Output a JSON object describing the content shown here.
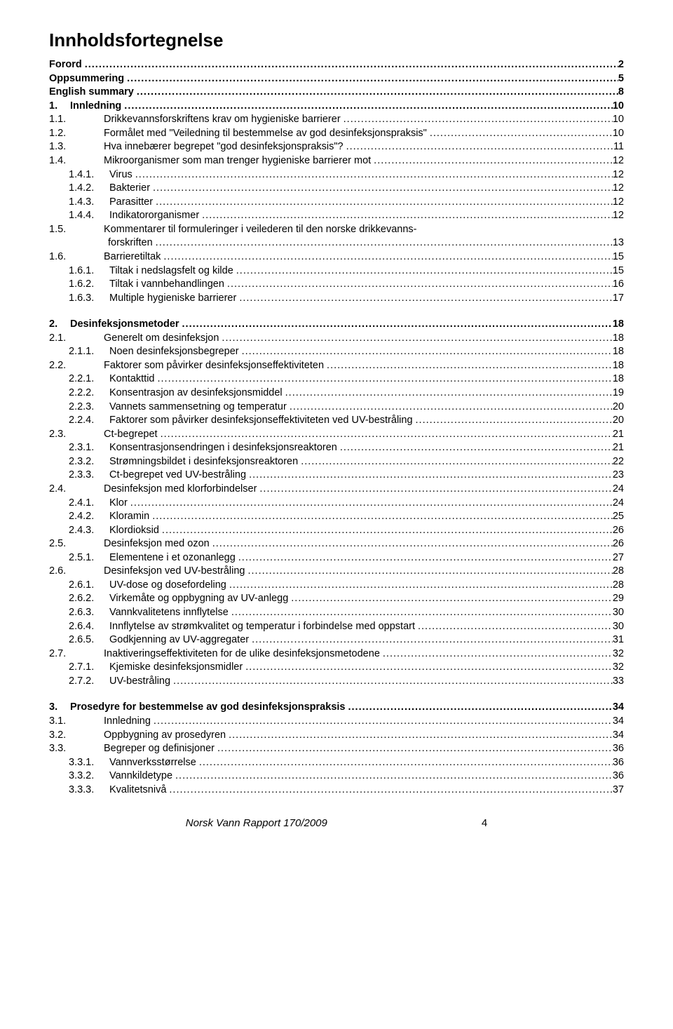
{
  "title": "Innholdsfortegnelse",
  "footer": {
    "text": "Norsk Vann Rapport 170/2009",
    "page": "4"
  },
  "sections": [
    {
      "entries": [
        {
          "level": 0,
          "num": "",
          "label": "Forord",
          "page": "2"
        },
        {
          "level": 0,
          "num": "",
          "label": "Oppsummering",
          "page": "5"
        },
        {
          "level": 0,
          "num": "",
          "label": "English summary",
          "page": "8"
        },
        {
          "level": 0,
          "num": "1.",
          "label": "Innledning",
          "page": "10"
        },
        {
          "level": 1,
          "num": "1.1.",
          "label": "Drikkevannsforskriftens krav om hygieniske barrierer",
          "page": "10"
        },
        {
          "level": 1,
          "num": "1.2.",
          "label": "Formålet med \"Veiledning til bestemmelse av god desinfeksjonspraksis\"",
          "page": "10"
        },
        {
          "level": 1,
          "num": "1.3.",
          "label": "Hva innebærer begrepet \"god desinfeksjonspraksis\"?",
          "page": "11"
        },
        {
          "level": 1,
          "num": "1.4.",
          "label": "Mikroorganismer som man trenger hygieniske barrierer mot",
          "page": "12"
        },
        {
          "level": 2,
          "num": "1.4.1.",
          "label": "Virus",
          "page": "12"
        },
        {
          "level": 2,
          "num": "1.4.2.",
          "label": "Bakterier",
          "page": "12"
        },
        {
          "level": 2,
          "num": "1.4.3.",
          "label": "Parasitter",
          "page": "12"
        },
        {
          "level": 2,
          "num": "1.4.4.",
          "label": "Indikatororganismer",
          "page": "12"
        },
        {
          "level": 1,
          "num": "1.5.",
          "label": "Kommentarer til formuleringer i veilederen til den norske drikkevanns-",
          "page": ""
        },
        {
          "level": 1,
          "num": "",
          "label": "forskriften",
          "page": "13",
          "wrap": true
        },
        {
          "level": 1,
          "num": "1.6.",
          "label": "Barrieretiltak",
          "page": "15"
        },
        {
          "level": 2,
          "num": "1.6.1.",
          "label": "Tiltak i nedslagsfelt og kilde",
          "page": "15"
        },
        {
          "level": 2,
          "num": "1.6.2.",
          "label": "Tiltak i vannbehandlingen",
          "page": "16"
        },
        {
          "level": 2,
          "num": "1.6.3.",
          "label": "Multiple hygieniske barrierer",
          "page": "17"
        }
      ]
    },
    {
      "entries": [
        {
          "level": 0,
          "num": "2.",
          "label": "Desinfeksjonsmetoder",
          "page": "18"
        },
        {
          "level": 1,
          "num": "2.1.",
          "label": "Generelt om desinfeksjon",
          "page": "18"
        },
        {
          "level": 2,
          "num": "2.1.1.",
          "label": "Noen desinfeksjonsbegreper",
          "page": "18"
        },
        {
          "level": 1,
          "num": "2.2.",
          "label": "Faktorer som påvirker desinfeksjonseffektiviteten",
          "page": "18"
        },
        {
          "level": 2,
          "num": "2.2.1.",
          "label": "Kontakttid",
          "page": "18"
        },
        {
          "level": 2,
          "num": "2.2.2.",
          "label": "Konsentrasjon av desinfeksjonsmiddel",
          "page": "19"
        },
        {
          "level": 2,
          "num": "2.2.3.",
          "label": "Vannets sammensetning og temperatur",
          "page": "20"
        },
        {
          "level": 2,
          "num": "2.2.4.",
          "label": "Faktorer som påvirker desinfeksjonseffektiviteten ved UV-bestråling",
          "page": "20"
        },
        {
          "level": 1,
          "num": "2.3.",
          "label": "Ct-begrepet",
          "page": "21"
        },
        {
          "level": 2,
          "num": "2.3.1.",
          "label": "Konsentrasjonsendringen i desinfeksjonsreaktoren",
          "page": "21"
        },
        {
          "level": 2,
          "num": "2.3.2.",
          "label": "Strømningsbildet i desinfeksjonsreaktoren",
          "page": "22"
        },
        {
          "level": 2,
          "num": "2.3.3.",
          "label": "Ct-begrepet ved UV-bestråling",
          "page": "23"
        },
        {
          "level": 1,
          "num": "2.4.",
          "label": "Desinfeksjon med klorforbindelser",
          "page": "24"
        },
        {
          "level": 2,
          "num": "2.4.1.",
          "label": "Klor",
          "page": "24"
        },
        {
          "level": 2,
          "num": "2.4.2.",
          "label": "Kloramin",
          "page": "25"
        },
        {
          "level": 2,
          "num": "2.4.3.",
          "label": "Klordioksid",
          "page": "26"
        },
        {
          "level": 1,
          "num": "2.5.",
          "label": "Desinfeksjon med ozon",
          "page": "26"
        },
        {
          "level": 2,
          "num": "2.5.1.",
          "label": "Elementene i et ozonanlegg",
          "page": "27"
        },
        {
          "level": 1,
          "num": "2.6.",
          "label": "Desinfeksjon ved UV-bestråling",
          "page": "28"
        },
        {
          "level": 2,
          "num": "2.6.1.",
          "label": "UV-dose og dosefordeling",
          "page": "28"
        },
        {
          "level": 2,
          "num": "2.6.2.",
          "label": "Virkemåte og oppbygning av UV-anlegg",
          "page": "29"
        },
        {
          "level": 2,
          "num": "2.6.3.",
          "label": "Vannkvalitetens innflytelse",
          "page": "30"
        },
        {
          "level": 2,
          "num": "2.6.4.",
          "label": "Innflytelse av strømkvalitet og temperatur i forbindelse med oppstart",
          "page": "30"
        },
        {
          "level": 2,
          "num": "2.6.5.",
          "label": "Godkjenning av UV-aggregater",
          "page": "31"
        },
        {
          "level": 1,
          "num": "2.7.",
          "label": "Inaktiveringseffektiviteten for de ulike desinfeksjonsmetodene",
          "page": "32"
        },
        {
          "level": 2,
          "num": "2.7.1.",
          "label": "Kjemiske desinfeksjonsmidler",
          "page": "32"
        },
        {
          "level": 2,
          "num": "2.7.2.",
          "label": "UV-bestråling",
          "page": "33"
        }
      ]
    },
    {
      "entries": [
        {
          "level": 0,
          "num": "3.",
          "label": "Prosedyre for bestemmelse av god desinfeksjonspraksis",
          "page": "34"
        },
        {
          "level": 1,
          "num": "3.1.",
          "label": "Innledning",
          "page": "34"
        },
        {
          "level": 1,
          "num": "3.2.",
          "label": "Oppbygning av prosedyren",
          "page": "34"
        },
        {
          "level": 1,
          "num": "3.3.",
          "label": "Begreper og definisjoner",
          "page": "36"
        },
        {
          "level": 2,
          "num": "3.3.1.",
          "label": "Vannverksstørrelse",
          "page": "36"
        },
        {
          "level": 2,
          "num": "3.3.2.",
          "label": "Vannkildetype",
          "page": "36"
        },
        {
          "level": 2,
          "num": "3.3.3.",
          "label": "Kvalitetsnivå",
          "page": "37"
        }
      ]
    }
  ]
}
